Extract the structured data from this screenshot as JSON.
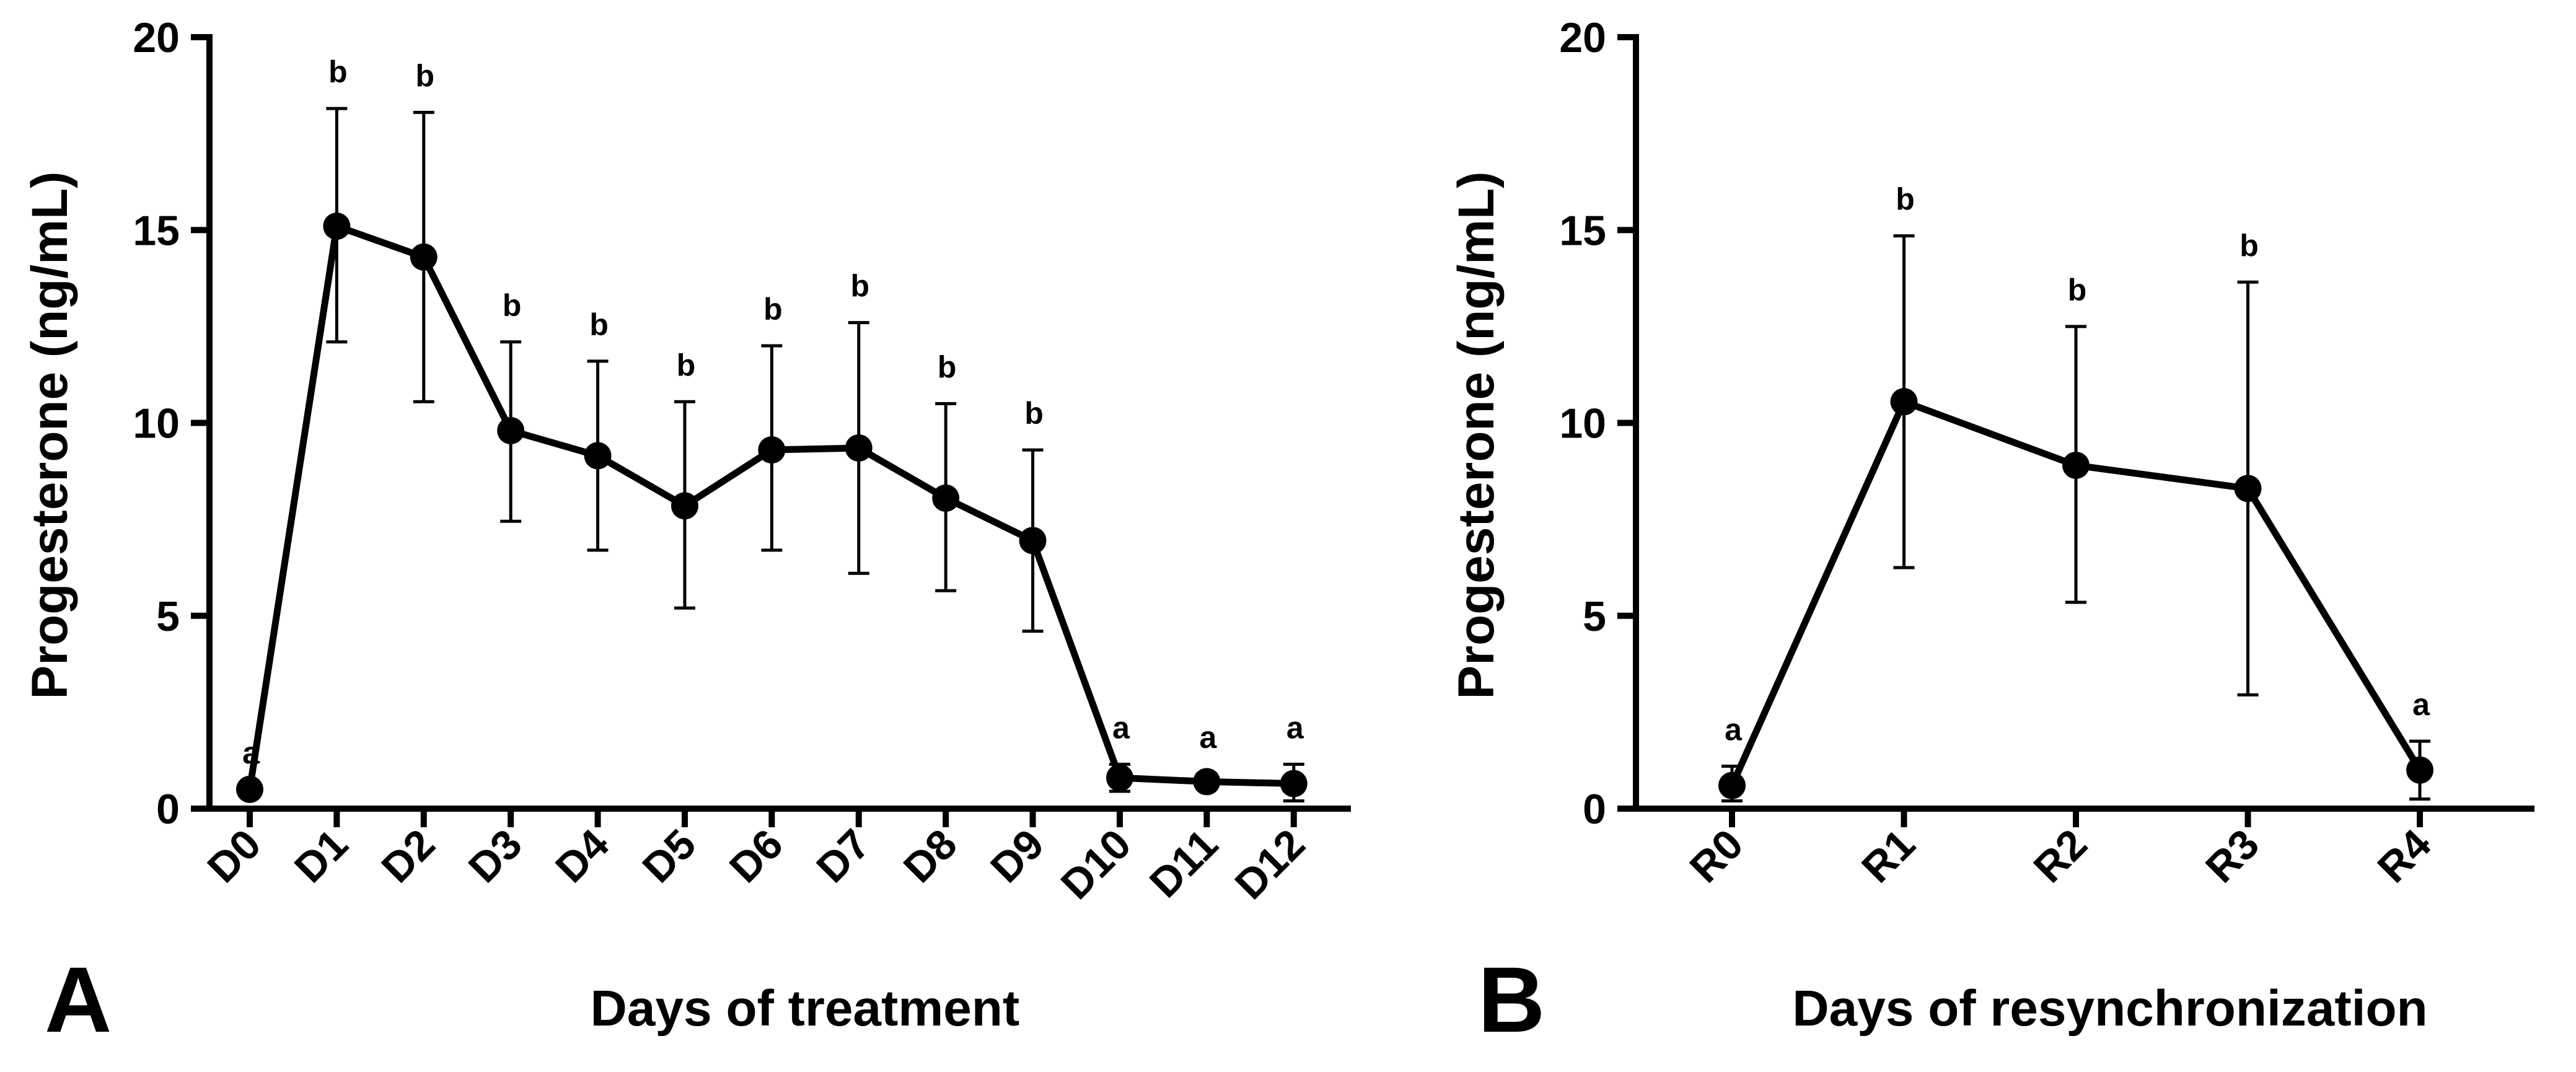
{
  "chart_data": [
    {
      "type": "line",
      "panel_label": "A",
      "title": "",
      "xlabel": "Days of treatment",
      "ylabel": "Progesterone (ng/mL)",
      "ylim": [
        0,
        20
      ],
      "yticks": [
        "0",
        "5",
        "10",
        "15",
        "20"
      ],
      "ytick_values": [
        0,
        5,
        10,
        15,
        20
      ],
      "categories": [
        "D0",
        "D1",
        "D2",
        "D3",
        "D4",
        "D5",
        "D6",
        "D7",
        "D8",
        "D9",
        "D10",
        "D11",
        "D12"
      ],
      "values": [
        0.5,
        15.1,
        14.3,
        9.8,
        9.15,
        7.85,
        9.3,
        9.35,
        8.05,
        6.95,
        0.8,
        0.7,
        0.65
      ],
      "err_upper": [
        0.5,
        18.15,
        18.05,
        12.1,
        11.6,
        10.55,
        12.0,
        12.6,
        10.5,
        9.3,
        1.15,
        0.9,
        1.15
      ],
      "err_lower": [
        0.5,
        12.1,
        10.55,
        7.45,
        6.7,
        5.2,
        6.7,
        6.1,
        5.65,
        4.6,
        0.45,
        0.5,
        0.2
      ],
      "significance": [
        "a",
        "b",
        "b",
        "b",
        "b",
        "b",
        "b",
        "b",
        "b",
        "b",
        "a",
        "a",
        "a"
      ],
      "grid": false,
      "legend": "none"
    },
    {
      "type": "line",
      "panel_label": "B",
      "title": "",
      "xlabel": "Days of resynchronization",
      "ylabel": "Progesterone (ng/mL)",
      "ylim": [
        0,
        20
      ],
      "yticks": [
        "0",
        "5",
        "10",
        "15",
        "20"
      ],
      "ytick_values": [
        0,
        5,
        10,
        15,
        20
      ],
      "categories": [
        "R0",
        "R1",
        "R2",
        "R3",
        "R4"
      ],
      "values": [
        0.6,
        10.55,
        8.9,
        8.3,
        1.0
      ],
      "err_upper": [
        1.1,
        14.85,
        12.5,
        13.65,
        1.75
      ],
      "err_lower": [
        0.2,
        6.25,
        5.35,
        2.95,
        0.25
      ],
      "significance": [
        "a",
        "b",
        "b",
        "b",
        "a"
      ],
      "grid": false,
      "legend": "none"
    }
  ]
}
